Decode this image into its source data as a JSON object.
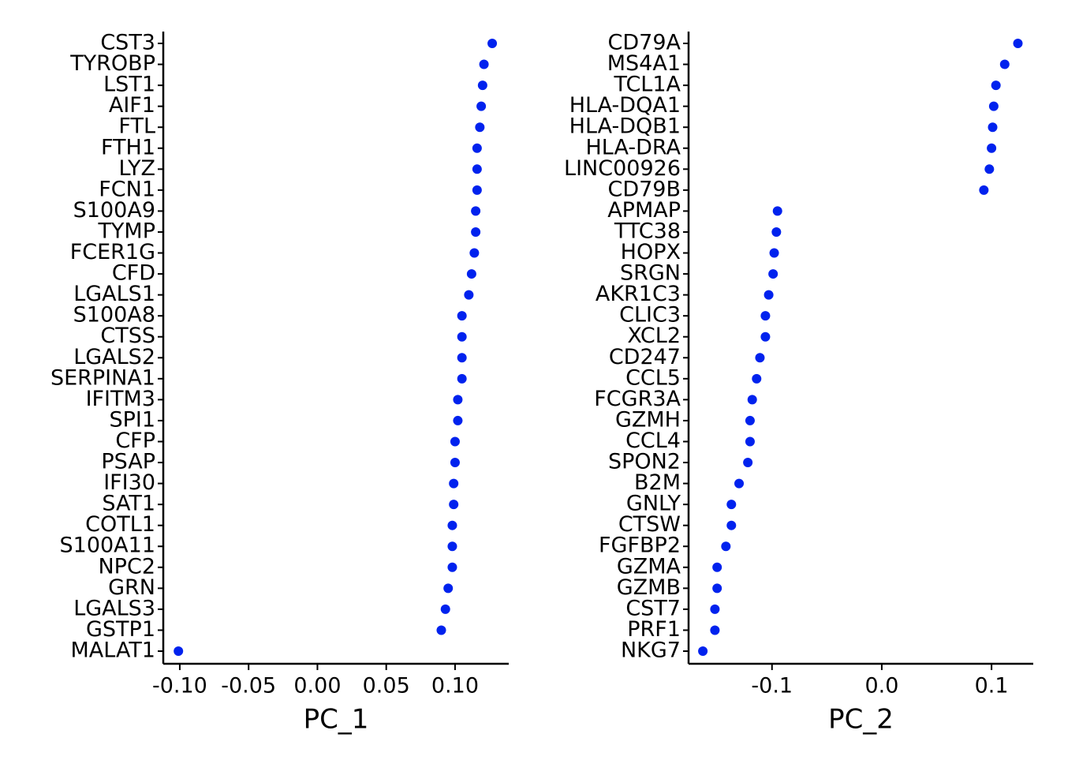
{
  "chart_data": [
    {
      "type": "dot",
      "xlabel": "PC_1",
      "color": "#0022ee",
      "categories": [
        "CST3",
        "TYROBP",
        "LST1",
        "AIF1",
        "FTL",
        "FTH1",
        "LYZ",
        "FCN1",
        "S100A9",
        "TYMP",
        "FCER1G",
        "CFD",
        "LGALS1",
        "S100A8",
        "CTSS",
        "LGALS2",
        "SERPINA1",
        "IFITM3",
        "SPI1",
        "CFP",
        "PSAP",
        "IFI30",
        "SAT1",
        "COTL1",
        "S100A11",
        "NPC2",
        "GRN",
        "LGALS3",
        "GSTP1",
        "MALAT1"
      ],
      "values": [
        0.127,
        0.121,
        0.12,
        0.119,
        0.118,
        0.116,
        0.116,
        0.116,
        0.115,
        0.115,
        0.114,
        0.112,
        0.11,
        0.105,
        0.105,
        0.105,
        0.105,
        0.102,
        0.102,
        0.1,
        0.1,
        0.099,
        0.099,
        0.098,
        0.098,
        0.098,
        0.095,
        0.093,
        0.09,
        -0.101
      ],
      "xlim": [
        -0.112,
        0.139
      ],
      "xticks": [
        {
          "value": -0.1,
          "label": "-0.10"
        },
        {
          "value": -0.05,
          "label": "-0.05"
        },
        {
          "value": 0,
          "label": "0.00"
        },
        {
          "value": 0.05,
          "label": "0.05"
        },
        {
          "value": 0.1,
          "label": "0.10"
        }
      ]
    },
    {
      "type": "dot",
      "xlabel": "PC_2",
      "color": "#0022ee",
      "categories": [
        "CD79A",
        "MS4A1",
        "TCL1A",
        "HLA-DQA1",
        "HLA-DQB1",
        "HLA-DRA",
        "LINC00926",
        "CD79B",
        "APMAP",
        "TTC38",
        "HOPX",
        "SRGN",
        "AKR1C3",
        "CLIC3",
        "XCL2",
        "CD247",
        "CCL5",
        "FCGR3A",
        "GZMH",
        "CCL4",
        "SPON2",
        "B2M",
        "GNLY",
        "CTSW",
        "FGFBP2",
        "GZMA",
        "GZMB",
        "CST7",
        "PRF1",
        "NKG7"
      ],
      "values": [
        0.124,
        0.112,
        0.104,
        0.102,
        0.101,
        0.1,
        0.098,
        0.093,
        -0.095,
        -0.096,
        -0.098,
        -0.099,
        -0.103,
        -0.106,
        -0.106,
        -0.111,
        -0.114,
        -0.118,
        -0.12,
        -0.12,
        -0.122,
        -0.13,
        -0.137,
        -0.137,
        -0.142,
        -0.15,
        -0.15,
        -0.152,
        -0.152,
        -0.163
      ],
      "xlim": [
        -0.176,
        0.138
      ],
      "xticks": [
        {
          "value": -0.1,
          "label": "-0.1"
        },
        {
          "value": 0,
          "label": "0.0"
        },
        {
          "value": 0.1,
          "label": "0.1"
        }
      ]
    }
  ]
}
